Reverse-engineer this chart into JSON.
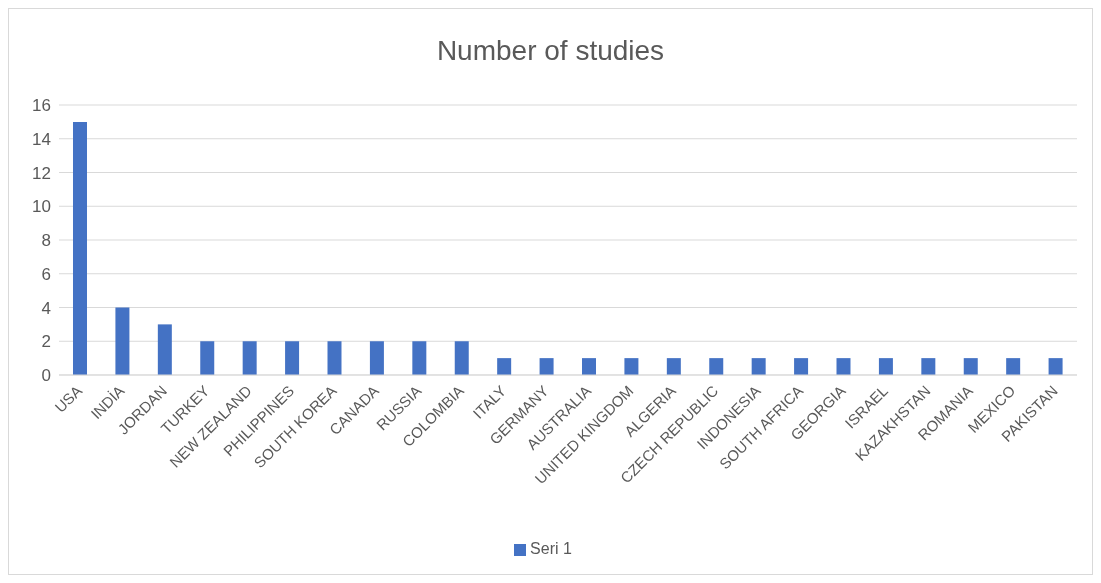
{
  "chart_data": {
    "type": "bar",
    "title": "Number of studies",
    "categories": [
      "USA",
      "INDİA",
      "JORDAN",
      "TURKEY",
      "NEW ZEALAND",
      "PHILIPPINES",
      "SOUTH KOREA",
      "CANADA",
      "RUSSIA",
      "COLOMBIA",
      "ITALY",
      "GERMANY",
      "AUSTRALIA",
      "UNITED KINGDOM",
      "ALGERIA",
      "CZECH REPUBLIC",
      "INDONESIA",
      "SOUTH AFRICA",
      "GEORGIA",
      "ISRAEL",
      "KAZAKHSTAN",
      "ROMANIA",
      "MEXICO",
      "PAKISTAN"
    ],
    "series": [
      {
        "name": "Seri 1",
        "color": "#4472c4",
        "values": [
          15,
          4,
          3,
          2,
          2,
          2,
          2,
          2,
          2,
          2,
          1,
          1,
          1,
          1,
          1,
          1,
          1,
          1,
          1,
          1,
          1,
          1,
          1,
          1
        ]
      }
    ],
    "ylim": [
      0,
      16
    ],
    "yticks": [
      0,
      2,
      4,
      6,
      8,
      10,
      12,
      14,
      16
    ],
    "grid": "y",
    "legend": "bottom"
  }
}
